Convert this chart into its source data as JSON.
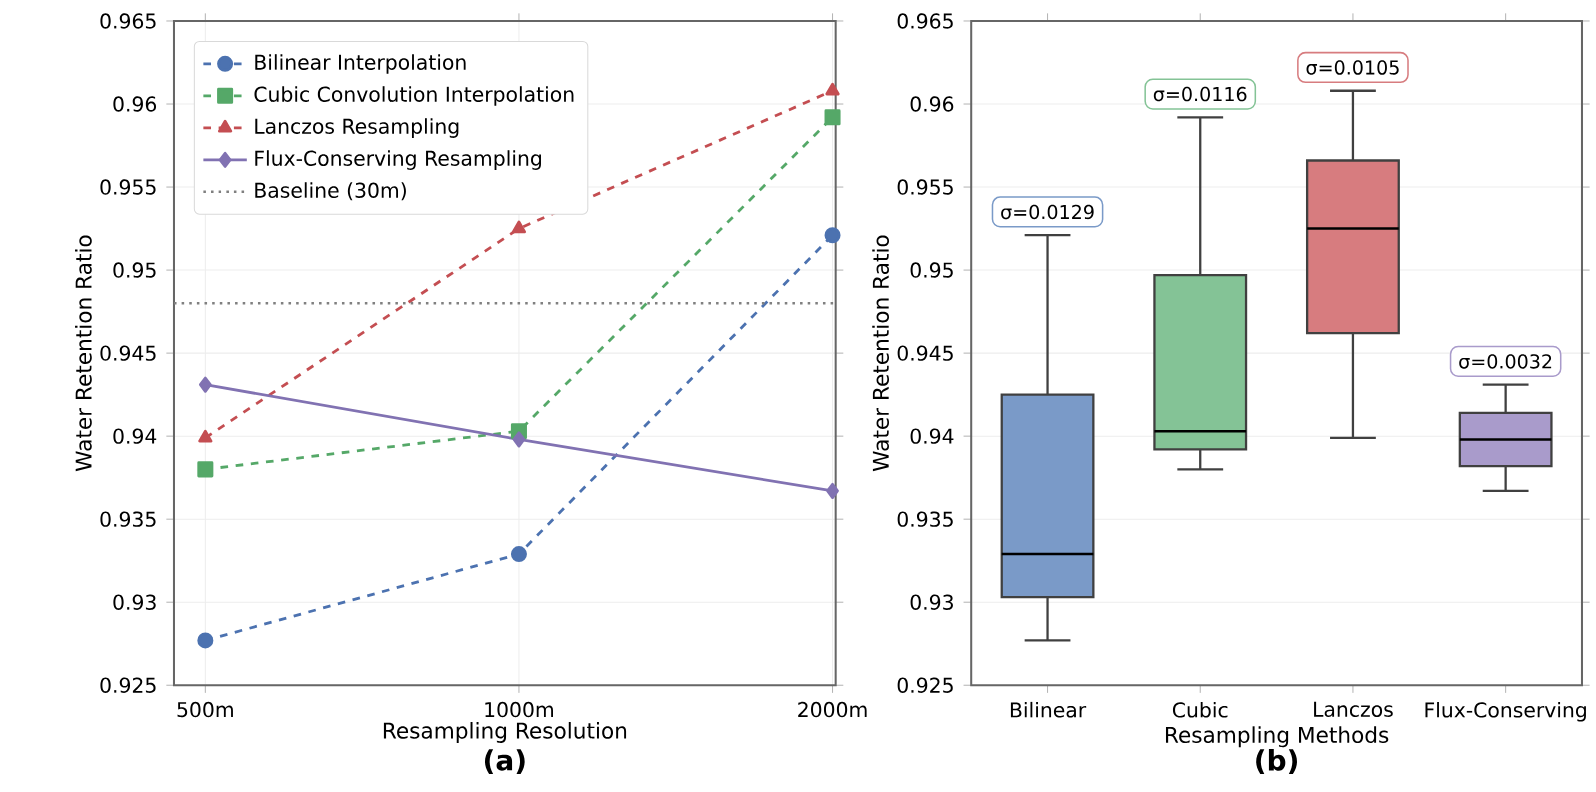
{
  "chart_data": [
    {
      "type": "line",
      "xlabel": "Resampling Resolution",
      "ylabel": "Water Retention Ratio",
      "categories": [
        "500m",
        "1000m",
        "2000m"
      ],
      "series": [
        {
          "name": "Bilinear Interpolation",
          "color": "#4c72b0",
          "values": [
            0.9277,
            0.9329,
            0.9521
          ],
          "marker": "circle",
          "line_style": "dashed"
        },
        {
          "name": "Cubic Convolution Interpolation",
          "color": "#55a868",
          "values": [
            0.938,
            0.9403,
            0.9592
          ],
          "marker": "square",
          "line_style": "dashed"
        },
        {
          "name": "Lanczos Resampling",
          "color": "#c44e52",
          "values": [
            0.9399,
            0.9525,
            0.9608
          ],
          "marker": "triangle",
          "line_style": "dashed"
        },
        {
          "name": "Flux-Conserving Resampling",
          "color": "#8172b2",
          "values": [
            0.9431,
            0.9398,
            0.9367
          ],
          "marker": "diamond",
          "line_style": "solid"
        }
      ],
      "ref_lines": [
        {
          "axis": "y",
          "value": 0.948,
          "label": "Baseline (30m)",
          "color": "#808080",
          "line_style": "dotted"
        }
      ],
      "ylim": [
        0.925,
        0.965
      ],
      "yticks": [
        0.925,
        0.93,
        0.935,
        0.94,
        0.945,
        0.95,
        0.955,
        0.96,
        0.965
      ],
      "grid": true,
      "legend": "top left",
      "annotations": [
        "(a)"
      ]
    },
    {
      "type": "box",
      "xlabel": "Resampling Methods",
      "ylabel": "Water Retention Ratio",
      "categories": [
        "Bilinear",
        "Cubic",
        "Lanczos",
        "Flux-Conserving"
      ],
      "colors": [
        "#7a9ac8",
        "#84c396",
        "#d77c7f",
        "#a99bcb"
      ],
      "boxes": [
        {
          "low": 0.9277,
          "q1": 0.9303,
          "median": 0.9329,
          "q3": 0.9425,
          "high": 0.9521
        },
        {
          "low": 0.938,
          "q1": 0.9392,
          "median": 0.9403,
          "q3": 0.9497,
          "high": 0.9592
        },
        {
          "low": 0.9399,
          "q1": 0.9462,
          "median": 0.9525,
          "q3": 0.9566,
          "high": 0.9608
        },
        {
          "low": 0.9367,
          "q1": 0.9382,
          "median": 0.9398,
          "q3": 0.9414,
          "high": 0.9431
        }
      ],
      "ylim": [
        0.925,
        0.965
      ],
      "yticks": [
        0.925,
        0.93,
        0.935,
        0.94,
        0.945,
        0.95,
        0.955,
        0.96,
        0.965
      ],
      "grid": "y",
      "annotations": [
        "(b)",
        "σ=0.0129",
        "σ=0.0116",
        "σ=0.0105",
        "σ=0.0032"
      ]
    }
  ]
}
